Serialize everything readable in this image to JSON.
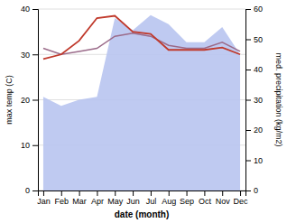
{
  "chart_data": {
    "type": "line",
    "categories": [
      "Jan",
      "Feb",
      "Mar",
      "Apr",
      "May",
      "Jun",
      "Jul",
      "Aug",
      "Sep",
      "Oct",
      "Nov",
      "Dec"
    ],
    "xlabel": "date (month)",
    "ylabel": "max temp (C)",
    "y2label": "med. precipitation (kg/m2)",
    "ylim": [
      0,
      40
    ],
    "yticks": [
      0,
      10,
      20,
      30,
      40
    ],
    "y2lim": [
      0,
      60
    ],
    "y2ticks": [
      0,
      10,
      20,
      30,
      40,
      50,
      60
    ],
    "grid": true,
    "series": [
      {
        "type": "area",
        "axis": "y2",
        "color": "#b8c4f0",
        "values": [
          31,
          28,
          30,
          31,
          57,
          53,
          58,
          55,
          49,
          49,
          54,
          45
        ]
      },
      {
        "type": "line",
        "axis": "y2",
        "color": "#9b6b8a",
        "values": [
          47,
          45,
          46,
          47,
          51,
          52,
          51,
          48,
          47,
          47,
          49,
          46
        ]
      },
      {
        "type": "line",
        "color": "#c0392b",
        "values": [
          29,
          30,
          33,
          38,
          38.5,
          35,
          34.5,
          31,
          31,
          31,
          31.5,
          30
        ]
      }
    ]
  }
}
